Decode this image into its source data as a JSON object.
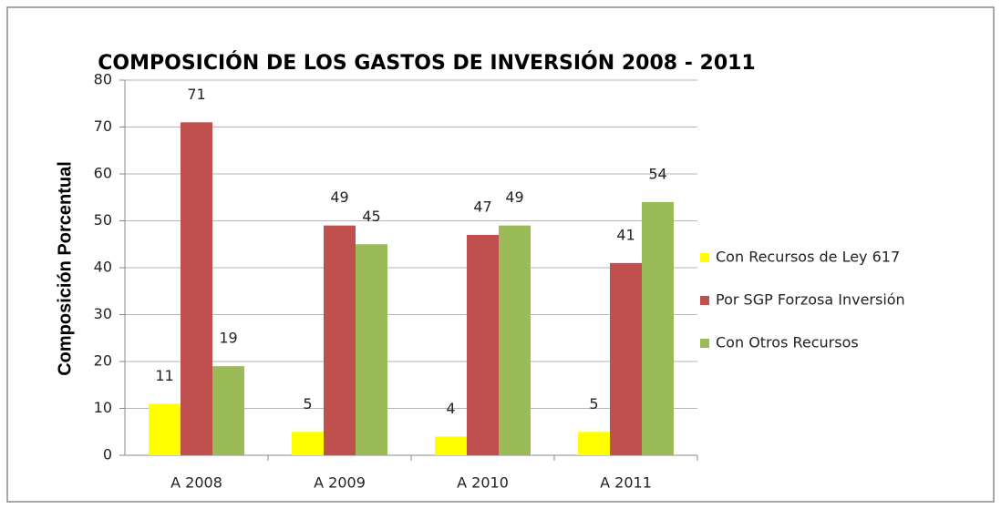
{
  "chart_data": {
    "type": "bar",
    "title": "COMPOSICIÓN DE LOS GASTOS DE INVERSIÓN 2008 - 2011",
    "y_label": "Composición Porcentual",
    "categories": [
      "A 2008",
      "A 2009",
      "A 2010",
      "A 2011"
    ],
    "series": [
      {
        "name": "Con Recursos de Ley 617",
        "color": "#ffff00",
        "values": [
          11,
          5,
          4,
          5
        ]
      },
      {
        "name": "Por SGP Forzosa Inversión",
        "color": "#c0504d",
        "values": [
          71,
          49,
          47,
          41
        ]
      },
      {
        "name": "Con Otros Recursos",
        "color": "#9bbb59",
        "values": [
          19,
          45,
          49,
          54
        ]
      }
    ],
    "ylim": [
      0,
      80
    ],
    "yticks": [
      0,
      10,
      20,
      30,
      40,
      50,
      60,
      70,
      80
    ],
    "grid": true,
    "legend": "right"
  }
}
